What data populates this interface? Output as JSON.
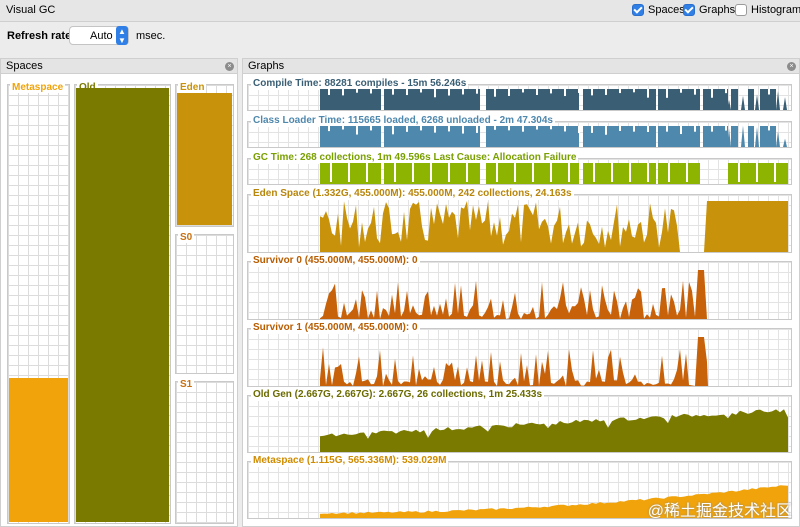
{
  "window": {
    "title": "Visual GC"
  },
  "toggles": [
    {
      "label": "Spaces",
      "checked": true
    },
    {
      "label": "Graphs",
      "checked": true
    },
    {
      "label": "Histogram",
      "checked": false
    }
  ],
  "refresh": {
    "label": "Refresh rate:",
    "value": "Auto",
    "unit": "msec."
  },
  "spaces_panel": {
    "title": "Spaces",
    "spaces": {
      "metaspace": {
        "label": "Metaspace",
        "color": "#f0a30a",
        "fill_fraction": 0.33
      },
      "old": {
        "label": "Old",
        "color": "#7a7a00",
        "fill_fraction": 0.995
      },
      "eden": {
        "label": "Eden",
        "color": "#c8920a",
        "fill_fraction": 0.95
      },
      "s0": {
        "label": "S0",
        "color": "#c87010",
        "fill_fraction": 0
      },
      "s1": {
        "label": "S1",
        "color": "#c87010",
        "fill_fraction": 0
      }
    }
  },
  "graphs_panel": {
    "title": "Graphs",
    "graphs": [
      {
        "label": "Compile Time: 88281 compiles - 15m 56.246s",
        "color": "#3a5f75",
        "label_color": "#3a5f75",
        "pattern": "compile"
      },
      {
        "label": "Class Loader Time: 115665 loaded, 6268 unloaded - 2m 47.304s",
        "color": "#4f88ad",
        "label_color": "#4f88ad",
        "pattern": "classloader"
      },
      {
        "label": "GC Time: 268 collections, 1m 49.596s  Last Cause: Allocation Failure",
        "color": "#8db400",
        "label_color": "#7aa000",
        "pattern": "gc"
      },
      {
        "label": "Eden Space (1.332G, 455.000M): 455.000M, 242 collections, 24.163s",
        "color": "#c8920a",
        "label_color": "#b8860b",
        "pattern": "eden"
      },
      {
        "label": "Survivor 0 (455.000M, 455.000M): 0",
        "color": "#c8620a",
        "label_color": "#b85c00",
        "pattern": "survivor"
      },
      {
        "label": "Survivor 1 (455.000M, 455.000M): 0",
        "color": "#c8620a",
        "label_color": "#b85c00",
        "pattern": "survivor"
      },
      {
        "label": "Old Gen (2.667G, 2.667G): 2.667G, 26 collections, 1m 25.433s",
        "color": "#7a7a00",
        "label_color": "#6b6b00",
        "pattern": "old"
      },
      {
        "label": "Metaspace (1.115G, 565.336M): 539.029M",
        "color": "#f0a30a",
        "label_color": "#d08c00",
        "pattern": "metaspace"
      }
    ]
  },
  "watermark": "@稀土掘金技术社区"
}
